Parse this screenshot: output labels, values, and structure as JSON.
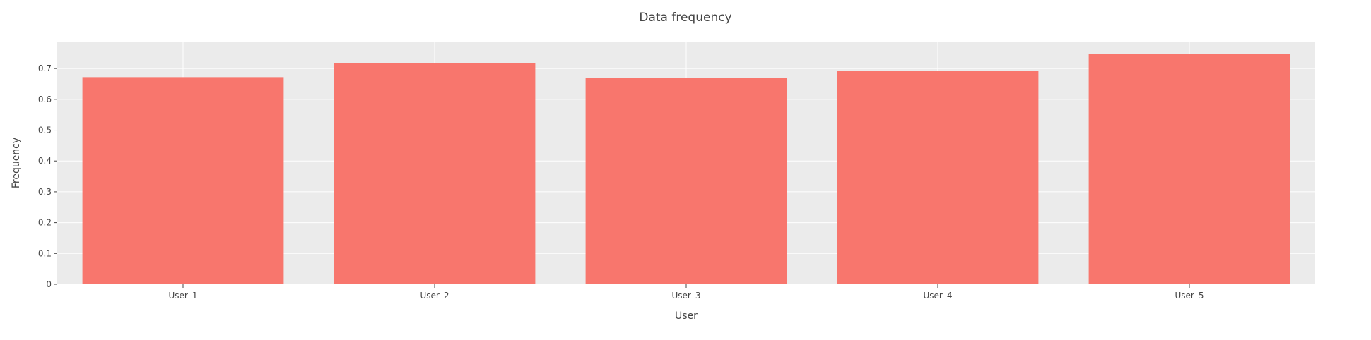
{
  "chart_data": {
    "type": "bar",
    "title": "Data frequency",
    "xlabel": "User",
    "ylabel": "Frequency",
    "categories": [
      "User_1",
      "User_2",
      "User_3",
      "User_4",
      "User_5"
    ],
    "values": [
      0.672,
      0.717,
      0.67,
      0.692,
      0.747
    ],
    "ylim": [
      0,
      0.785
    ],
    "yticks": [
      0,
      0.1,
      0.2,
      0.3,
      0.4,
      0.5,
      0.6,
      0.7
    ],
    "ytick_labels": [
      "0",
      "0.1",
      "0.2",
      "0.3",
      "0.4",
      "0.5",
      "0.6",
      "0.7"
    ],
    "grid": true,
    "bar_color": "#f8766d",
    "plot_background": "#ebebeb",
    "grid_color": "#ffffff"
  }
}
